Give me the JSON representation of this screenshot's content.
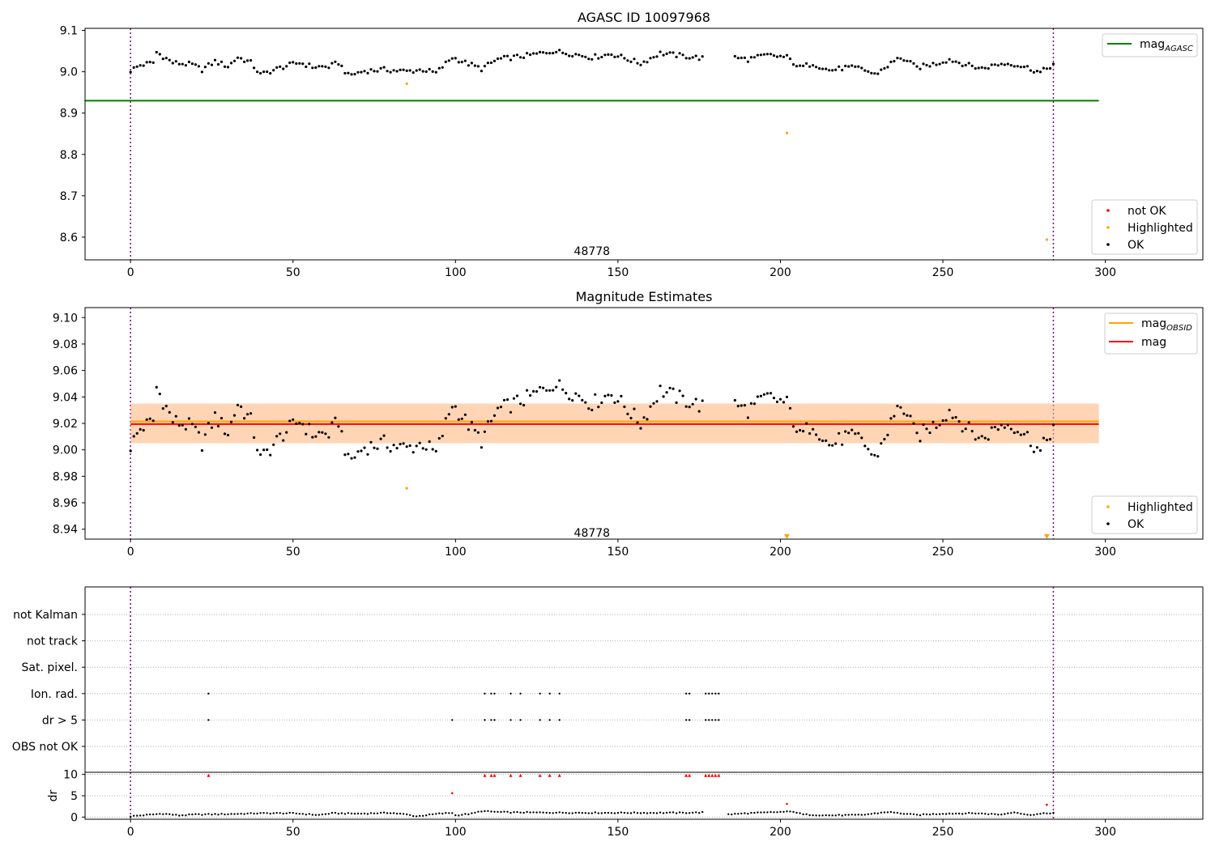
{
  "chart_data": [
    {
      "type": "scatter",
      "title": "AGASC ID 10097968",
      "xlim": [
        -14,
        330
      ],
      "ylim": [
        8.545,
        9.105
      ],
      "xticks": [
        0,
        50,
        100,
        150,
        200,
        250,
        300
      ],
      "yticks": [
        8.6,
        8.7,
        8.8,
        8.9,
        9.0,
        9.1
      ],
      "ytick_decimals": 1,
      "vlines": [
        0,
        284
      ],
      "annotation": {
        "text": "48778",
        "x": 142,
        "y": 8.567
      },
      "hline": {
        "name_base": "mag",
        "name_sub": "AGASC",
        "value": 8.93,
        "x_range": [
          0,
          298
        ],
        "color": "#008000"
      },
      "legend_lines_position": "top-right",
      "legend_points_position": "bottom-right",
      "legend_points": [
        {
          "label": "not OK",
          "color": "#ff0000"
        },
        {
          "label": "Highlighted",
          "color": "#ffa500"
        },
        {
          "label": "OK",
          "color": "#000000"
        }
      ],
      "highlighted_points": [
        [
          85,
          8.971
        ],
        [
          202,
          8.852
        ],
        [
          282,
          8.594
        ]
      ],
      "ok_anchors": [
        [
          0,
          9.003
        ],
        [
          3,
          9.016
        ],
        [
          7,
          9.022
        ],
        [
          8,
          9.047
        ],
        [
          13,
          9.022
        ],
        [
          19,
          9.017
        ],
        [
          22,
          9.005
        ],
        [
          26,
          9.025
        ],
        [
          30,
          9.013
        ],
        [
          33,
          9.035
        ],
        [
          37,
          9.022
        ],
        [
          40,
          8.993
        ],
        [
          47,
          9.012
        ],
        [
          52,
          9.022
        ],
        [
          56,
          9.012
        ],
        [
          61,
          9.012
        ],
        [
          64,
          9.022
        ],
        [
          67,
          8.991
        ],
        [
          72,
          9.002
        ],
        [
          78,
          9.005
        ],
        [
          85,
          9.001
        ],
        [
          90,
          9.005
        ],
        [
          94,
          8.997
        ],
        [
          99,
          9.035
        ],
        [
          103,
          9.022
        ],
        [
          108,
          9.007
        ],
        [
          113,
          9.03
        ],
        [
          118,
          9.035
        ],
        [
          123,
          9.04
        ],
        [
          130,
          9.05
        ],
        [
          137,
          9.042
        ],
        [
          142,
          9.035
        ],
        [
          148,
          9.043
        ],
        [
          152,
          9.033
        ],
        [
          157,
          9.02
        ],
        [
          163,
          9.045
        ],
        [
          170,
          9.038
        ],
        [
          176,
          9.033
        ],
        [
          178,
          null
        ],
        [
          182,
          null
        ],
        [
          185,
          9.035
        ],
        [
          190,
          9.03
        ],
        [
          196,
          9.04
        ],
        [
          202,
          9.035
        ],
        [
          206,
          9.01
        ],
        [
          210,
          9.02
        ],
        [
          215,
          9.003
        ],
        [
          220,
          9.01
        ],
        [
          225,
          9.008
        ],
        [
          229,
          8.993
        ],
        [
          234,
          9.02
        ],
        [
          237,
          9.035
        ],
        [
          242,
          9.01
        ],
        [
          248,
          9.02
        ],
        [
          252,
          9.03
        ],
        [
          258,
          9.015
        ],
        [
          262,
          9.008
        ],
        [
          267,
          9.018
        ],
        [
          271,
          9.02
        ],
        [
          276,
          9.01
        ],
        [
          280,
          8.998
        ],
        [
          284,
          9.018
        ]
      ]
    },
    {
      "type": "scatter",
      "title": "Magnitude Estimates",
      "xlim": [
        -14,
        330
      ],
      "ylim": [
        8.9325,
        9.1075
      ],
      "xticks": [
        0,
        50,
        100,
        150,
        200,
        250,
        300
      ],
      "yticks": [
        8.94,
        8.96,
        8.98,
        9.0,
        9.02,
        9.04,
        9.06,
        9.08,
        9.1
      ],
      "ytick_decimals": 2,
      "vlines": [
        0,
        284
      ],
      "annotation": {
        "text": "48778",
        "x": 142,
        "y": 8.9375
      },
      "bands": [
        {
          "x_range": [
            0,
            298
          ],
          "y_range": [
            9.005,
            9.035
          ],
          "color": "#ffc0cb",
          "opacity": 0.45
        },
        {
          "x_range": [
            0,
            298
          ],
          "y_range": [
            9.005,
            9.035
          ],
          "color": "#ffa500",
          "opacity": 0.22
        }
      ],
      "hlines": [
        {
          "name_base": "mag",
          "name_sub": "OBSID",
          "value": 9.0215,
          "x_range": [
            0,
            298
          ],
          "color": "#ffa500"
        },
        {
          "name_base": "mag",
          "name_sub": "",
          "value": 9.0195,
          "x_range": [
            0,
            298
          ],
          "color": "#ff0000"
        }
      ],
      "legend_lines_position": "top-right",
      "legend_points_position": "bottom-right",
      "legend_points": [
        {
          "label": "Highlighted",
          "color": "#ffa500"
        },
        {
          "label": "OK",
          "color": "#000000"
        }
      ],
      "highlighted_points": [
        [
          85,
          8.971
        ]
      ],
      "off_scale_markers": [
        [
          202,
          8.9345
        ],
        [
          282,
          8.9345
        ]
      ],
      "ok_from_panel": 0
    },
    {
      "type": "scatter",
      "title": "",
      "xlim": [
        -14,
        330
      ],
      "categories": [
        "not Kalman",
        "not track",
        "Sat. pixel.",
        "Ion. rad.",
        "dr > 5",
        "OBS not OK"
      ],
      "flag_ion_rad": [
        24,
        109,
        111,
        112,
        117,
        120,
        126,
        129,
        132,
        171,
        172,
        177,
        178,
        179,
        180,
        181
      ],
      "flag_dr5": [
        24,
        99,
        109,
        111,
        112,
        117,
        120,
        126,
        129,
        132,
        171,
        172,
        177,
        178,
        179,
        180,
        181
      ],
      "vlines": [
        0,
        284
      ]
    },
    {
      "type": "scatter",
      "title": "",
      "ylabel": "dr",
      "xlim": [
        -14,
        330
      ],
      "ylim": [
        -0.5,
        10.5
      ],
      "xticks": [
        0,
        50,
        100,
        150,
        200,
        250,
        300
      ],
      "yticks": [
        0,
        5,
        10
      ],
      "vlines": [
        0,
        284
      ],
      "red_triangles": [
        [
          24,
          9.8
        ],
        [
          109,
          9.8
        ],
        [
          111,
          9.8
        ],
        [
          112,
          9.8
        ],
        [
          117,
          9.8
        ],
        [
          120,
          9.8
        ],
        [
          126,
          9.8
        ],
        [
          129,
          9.8
        ],
        [
          132,
          9.8
        ],
        [
          171,
          9.8
        ],
        [
          172,
          9.8
        ],
        [
          177,
          9.8
        ],
        [
          178,
          9.8
        ],
        [
          179,
          9.8
        ],
        [
          180,
          9.8
        ],
        [
          181,
          9.8
        ]
      ],
      "red_points": [
        [
          99,
          5.6
        ],
        [
          202,
          3.1
        ],
        [
          282,
          2.9
        ]
      ],
      "ok_dr_anchors": [
        [
          0,
          0.2
        ],
        [
          5,
          0.5
        ],
        [
          10,
          0.8
        ],
        [
          15,
          0.4
        ],
        [
          20,
          0.6
        ],
        [
          30,
          0.7
        ],
        [
          40,
          0.9
        ],
        [
          50,
          0.9
        ],
        [
          58,
          0.5
        ],
        [
          62,
          0.9
        ],
        [
          70,
          0.8
        ],
        [
          80,
          1.0
        ],
        [
          85,
          0.6
        ],
        [
          88,
          0.2
        ],
        [
          95,
          0.8
        ],
        [
          99,
          1.0
        ],
        [
          100,
          0.4
        ],
        [
          105,
          0.8
        ],
        [
          108,
          1.4
        ],
        [
          113,
          1.2
        ],
        [
          118,
          1.1
        ],
        [
          140,
          1.0
        ],
        [
          160,
          1.0
        ],
        [
          170,
          1.0
        ],
        [
          176,
          1.1
        ],
        [
          180,
          null
        ],
        [
          182,
          null
        ],
        [
          183,
          0.6
        ],
        [
          190,
          0.9
        ],
        [
          200,
          1.2
        ],
        [
          204,
          1.3
        ],
        [
          207,
          0.6
        ],
        [
          215,
          0.4
        ],
        [
          225,
          0.5
        ],
        [
          233,
          1.2
        ],
        [
          238,
          0.8
        ],
        [
          242,
          0.5
        ],
        [
          250,
          0.8
        ],
        [
          260,
          0.9
        ],
        [
          268,
          0.6
        ],
        [
          272,
          1.2
        ],
        [
          276,
          0.5
        ],
        [
          284,
          1.0
        ]
      ]
    }
  ]
}
